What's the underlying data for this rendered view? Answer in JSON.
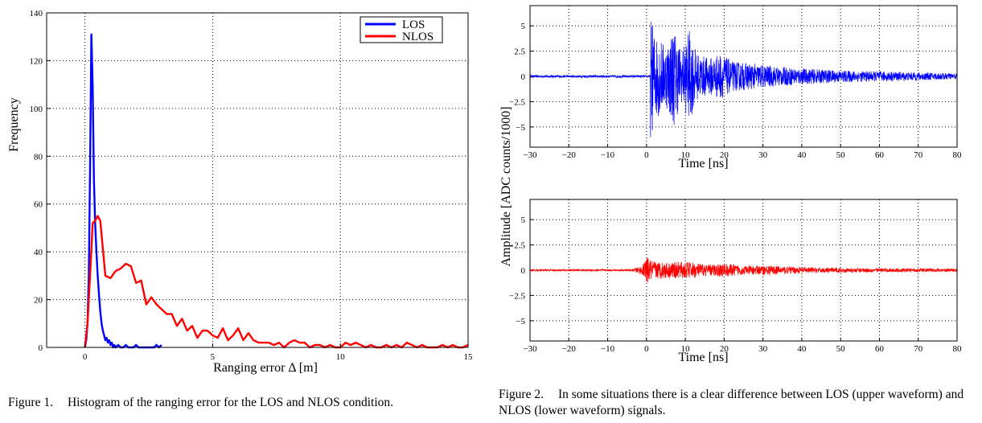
{
  "figure1": {
    "caption_label": "Figure 1.",
    "caption_text": "Histogram of the ranging error for the LOS and NLOS condition.",
    "chart_data": {
      "type": "line",
      "xlabel": "Ranging error Δ [m]",
      "ylabel": "Frequency",
      "xlim": [
        -1.5,
        15
      ],
      "ylim": [
        0,
        140
      ],
      "xticks": [
        0,
        5,
        10,
        15
      ],
      "yticks": [
        0,
        20,
        40,
        60,
        80,
        100,
        120,
        140
      ],
      "grid": true,
      "legend_position": "top-right",
      "series": [
        {
          "name": "LOS",
          "color": "#0000ff",
          "x": [
            0,
            0.05,
            0.1,
            0.15,
            0.2,
            0.25,
            0.3,
            0.35,
            0.4,
            0.45,
            0.5,
            0.55,
            0.6,
            0.65,
            0.7,
            0.75,
            0.8,
            0.85,
            0.9,
            0.95,
            1.0,
            1.05,
            1.1,
            1.15,
            1.2,
            1.3,
            1.4,
            1.5,
            1.6,
            1.7,
            1.8,
            1.9,
            2.0,
            2.1,
            2.2,
            2.3,
            2.4,
            2.5,
            2.6,
            2.7,
            2.8,
            2.9,
            3.0
          ],
          "y": [
            0,
            3,
            10,
            30,
            75,
            131,
            110,
            70,
            52,
            40,
            30,
            22,
            15,
            10,
            7,
            5,
            3,
            4,
            2,
            3,
            1,
            2,
            0,
            1,
            0,
            1,
            0,
            0,
            1,
            0,
            0,
            0,
            1,
            0,
            0,
            0,
            0,
            0,
            0,
            0,
            1,
            0,
            1
          ]
        },
        {
          "name": "NLOS",
          "color": "#ff0000",
          "x": [
            0,
            0.1,
            0.2,
            0.3,
            0.4,
            0.5,
            0.6,
            0.8,
            1.0,
            1.2,
            1.4,
            1.6,
            1.8,
            2.0,
            2.2,
            2.4,
            2.6,
            2.8,
            3.0,
            3.2,
            3.4,
            3.6,
            3.8,
            4.0,
            4.2,
            4.4,
            4.6,
            4.8,
            5.0,
            5.2,
            5.4,
            5.6,
            5.8,
            6.0,
            6.2,
            6.4,
            6.6,
            6.8,
            7.0,
            7.2,
            7.4,
            7.6,
            7.8,
            8.0,
            8.2,
            8.4,
            8.6,
            8.8,
            9.0,
            9.2,
            9.4,
            9.6,
            9.8,
            10.0,
            10.2,
            10.4,
            10.6,
            10.8,
            11.0,
            11.2,
            11.4,
            11.6,
            11.8,
            12.0,
            12.2,
            12.4,
            12.6,
            12.8,
            13.0,
            13.2,
            13.4,
            13.6,
            13.8,
            14.0,
            14.2,
            14.4,
            14.6,
            14.8,
            15.0
          ],
          "y": [
            0,
            10,
            30,
            52,
            53,
            55,
            53,
            30,
            29,
            32,
            33,
            35,
            34,
            27,
            28,
            18,
            21,
            18,
            16,
            14,
            14,
            9,
            12,
            7,
            9,
            4,
            7,
            7,
            5,
            4,
            8,
            3,
            5,
            8,
            3,
            6,
            3,
            2,
            2,
            2,
            1,
            2,
            0,
            2,
            3,
            2,
            2,
            0,
            1,
            1,
            0,
            1,
            0,
            0,
            2,
            1,
            2,
            1,
            0,
            1,
            0,
            0,
            1,
            0,
            1,
            0,
            2,
            1,
            0,
            1,
            0,
            0,
            0,
            1,
            0,
            1,
            0,
            0,
            1
          ]
        }
      ]
    }
  },
  "figure2": {
    "caption_label": "Figure 2.",
    "caption_text": "In some situations there is a clear difference between LOS (upper waveform) and NLOS (lower waveform) signals.",
    "ylabel": "Amplitude [ADC counts/1000]",
    "chart_data": [
      {
        "type": "line",
        "xlabel": "Time [ns]",
        "xlim": [
          -30,
          80
        ],
        "ylim": [
          -7,
          7
        ],
        "xticks": [
          -30,
          -20,
          -10,
          0,
          10,
          20,
          30,
          40,
          50,
          60,
          70,
          80
        ],
        "yticks": [
          5,
          2.5,
          0,
          -2.5,
          -5
        ],
        "grid": true,
        "series": [
          {
            "color": "#0000ff",
            "noise_floor": 0.12,
            "onset": 1,
            "envelope": [
              [
                1,
                6.2
              ],
              [
                2,
                4.5
              ],
              [
                5,
                3.0
              ],
              [
                7,
                5.0
              ],
              [
                9,
                2.5
              ],
              [
                11,
                4.6
              ],
              [
                13,
                2.3
              ],
              [
                16,
                1.8
              ],
              [
                19,
                2.3
              ],
              [
                22,
                1.5
              ],
              [
                27,
                1.3
              ],
              [
                33,
                1.0
              ],
              [
                40,
                0.8
              ],
              [
                50,
                0.6
              ],
              [
                65,
                0.45
              ],
              [
                80,
                0.3
              ]
            ]
          }
        ]
      },
      {
        "type": "line",
        "xlabel": "Time [ns]",
        "xlim": [
          -30,
          80
        ],
        "ylim": [
          -7,
          7
        ],
        "xticks": [
          -30,
          -20,
          -10,
          0,
          10,
          20,
          30,
          40,
          50,
          60,
          70,
          80
        ],
        "yticks": [
          5,
          2.5,
          0,
          -2.5,
          -5
        ],
        "grid": true,
        "series": [
          {
            "color": "#ff0000",
            "noise_floor": 0.1,
            "onset": -3,
            "envelope": [
              [
                -3,
                0.2
              ],
              [
                -1,
                0.5
              ],
              [
                0,
                1.3
              ],
              [
                2,
                0.9
              ],
              [
                6,
                0.8
              ],
              [
                9,
                0.85
              ],
              [
                12,
                0.8
              ],
              [
                15,
                0.55
              ],
              [
                20,
                0.7
              ],
              [
                25,
                0.45
              ],
              [
                32,
                0.45
              ],
              [
                38,
                0.35
              ],
              [
                45,
                0.25
              ],
              [
                60,
                0.2
              ],
              [
                80,
                0.15
              ]
            ]
          }
        ]
      }
    ]
  }
}
